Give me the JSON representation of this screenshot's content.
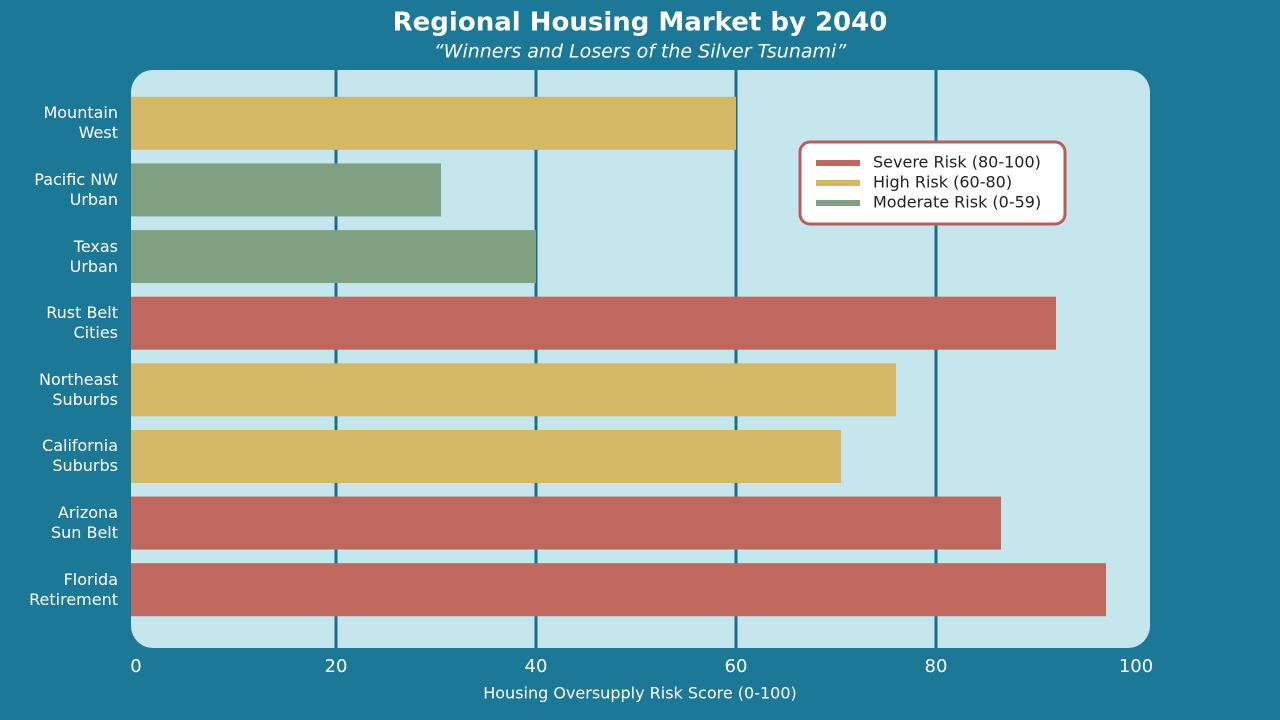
{
  "chart_data": {
    "type": "bar",
    "orientation": "horizontal",
    "title": "Regional Housing Market by 2040",
    "subtitle": "“Winners and Losers of the Silver Tsunami”",
    "x_label": "Housing Oversupply Risk Score (0-100)",
    "categories": [
      "Mountain\nWest",
      "Pacific NW\nUrban",
      "Texas\nUrban",
      "Rust Belt\nCities",
      "Northeast\nSuburbs",
      "California\nSuburbs",
      "Arizona\nSun Belt",
      "Florida\nRetirement"
    ],
    "series": [
      {
        "name": "Severe Risk (80-100)",
        "color": "#c0675e",
        "values": [
          null,
          null,
          null,
          92,
          null,
          null,
          86.5,
          97
        ]
      },
      {
        "name": "High Risk (60-80)",
        "color": "#d5b866",
        "values": [
          60,
          null,
          null,
          null,
          76,
          70.5,
          null,
          null
        ]
      },
      {
        "name": "Moderate Risk (0-59)",
        "color": "#7fa182",
        "values": [
          null,
          30.5,
          40,
          null,
          null,
          null,
          null,
          null
        ]
      }
    ],
    "xlim": [
      0,
      100
    ],
    "xticks": [
      0,
      20,
      40,
      60,
      80,
      100
    ],
    "grid": true,
    "legend": "upper right"
  }
}
